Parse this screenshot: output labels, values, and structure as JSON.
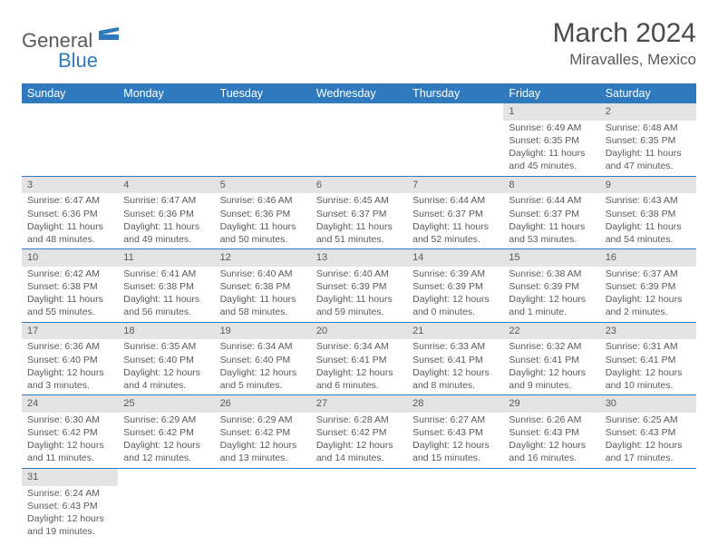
{
  "logo": {
    "text1": "General",
    "text2": "Blue",
    "icon_color": "#2f7abf"
  },
  "title": "March 2024",
  "location": "Miravalles, Mexico",
  "colors": {
    "header_bg": "#2f7abf",
    "header_fg": "#ffffff",
    "daynum_bg": "#e3e3e3",
    "rule": "#2f7abf",
    "text": "#5a5a5a"
  },
  "font": {
    "family": "Arial",
    "day_header_size": 12.5,
    "cell_size": 10.5,
    "title_size": 30,
    "location_size": 17
  },
  "day_headers": [
    "Sunday",
    "Monday",
    "Tuesday",
    "Wednesday",
    "Thursday",
    "Friday",
    "Saturday"
  ],
  "weeks": [
    [
      null,
      null,
      null,
      null,
      null,
      {
        "n": "1",
        "sr": "Sunrise: 6:49 AM",
        "ss": "Sunset: 6:35 PM",
        "dl1": "Daylight: 11 hours",
        "dl2": "and 45 minutes."
      },
      {
        "n": "2",
        "sr": "Sunrise: 6:48 AM",
        "ss": "Sunset: 6:35 PM",
        "dl1": "Daylight: 11 hours",
        "dl2": "and 47 minutes."
      }
    ],
    [
      {
        "n": "3",
        "sr": "Sunrise: 6:47 AM",
        "ss": "Sunset: 6:36 PM",
        "dl1": "Daylight: 11 hours",
        "dl2": "and 48 minutes."
      },
      {
        "n": "4",
        "sr": "Sunrise: 6:47 AM",
        "ss": "Sunset: 6:36 PM",
        "dl1": "Daylight: 11 hours",
        "dl2": "and 49 minutes."
      },
      {
        "n": "5",
        "sr": "Sunrise: 6:46 AM",
        "ss": "Sunset: 6:36 PM",
        "dl1": "Daylight: 11 hours",
        "dl2": "and 50 minutes."
      },
      {
        "n": "6",
        "sr": "Sunrise: 6:45 AM",
        "ss": "Sunset: 6:37 PM",
        "dl1": "Daylight: 11 hours",
        "dl2": "and 51 minutes."
      },
      {
        "n": "7",
        "sr": "Sunrise: 6:44 AM",
        "ss": "Sunset: 6:37 PM",
        "dl1": "Daylight: 11 hours",
        "dl2": "and 52 minutes."
      },
      {
        "n": "8",
        "sr": "Sunrise: 6:44 AM",
        "ss": "Sunset: 6:37 PM",
        "dl1": "Daylight: 11 hours",
        "dl2": "and 53 minutes."
      },
      {
        "n": "9",
        "sr": "Sunrise: 6:43 AM",
        "ss": "Sunset: 6:38 PM",
        "dl1": "Daylight: 11 hours",
        "dl2": "and 54 minutes."
      }
    ],
    [
      {
        "n": "10",
        "sr": "Sunrise: 6:42 AM",
        "ss": "Sunset: 6:38 PM",
        "dl1": "Daylight: 11 hours",
        "dl2": "and 55 minutes."
      },
      {
        "n": "11",
        "sr": "Sunrise: 6:41 AM",
        "ss": "Sunset: 6:38 PM",
        "dl1": "Daylight: 11 hours",
        "dl2": "and 56 minutes."
      },
      {
        "n": "12",
        "sr": "Sunrise: 6:40 AM",
        "ss": "Sunset: 6:38 PM",
        "dl1": "Daylight: 11 hours",
        "dl2": "and 58 minutes."
      },
      {
        "n": "13",
        "sr": "Sunrise: 6:40 AM",
        "ss": "Sunset: 6:39 PM",
        "dl1": "Daylight: 11 hours",
        "dl2": "and 59 minutes."
      },
      {
        "n": "14",
        "sr": "Sunrise: 6:39 AM",
        "ss": "Sunset: 6:39 PM",
        "dl1": "Daylight: 12 hours",
        "dl2": "and 0 minutes."
      },
      {
        "n": "15",
        "sr": "Sunrise: 6:38 AM",
        "ss": "Sunset: 6:39 PM",
        "dl1": "Daylight: 12 hours",
        "dl2": "and 1 minute."
      },
      {
        "n": "16",
        "sr": "Sunrise: 6:37 AM",
        "ss": "Sunset: 6:39 PM",
        "dl1": "Daylight: 12 hours",
        "dl2": "and 2 minutes."
      }
    ],
    [
      {
        "n": "17",
        "sr": "Sunrise: 6:36 AM",
        "ss": "Sunset: 6:40 PM",
        "dl1": "Daylight: 12 hours",
        "dl2": "and 3 minutes."
      },
      {
        "n": "18",
        "sr": "Sunrise: 6:35 AM",
        "ss": "Sunset: 6:40 PM",
        "dl1": "Daylight: 12 hours",
        "dl2": "and 4 minutes."
      },
      {
        "n": "19",
        "sr": "Sunrise: 6:34 AM",
        "ss": "Sunset: 6:40 PM",
        "dl1": "Daylight: 12 hours",
        "dl2": "and 5 minutes."
      },
      {
        "n": "20",
        "sr": "Sunrise: 6:34 AM",
        "ss": "Sunset: 6:41 PM",
        "dl1": "Daylight: 12 hours",
        "dl2": "and 6 minutes."
      },
      {
        "n": "21",
        "sr": "Sunrise: 6:33 AM",
        "ss": "Sunset: 6:41 PM",
        "dl1": "Daylight: 12 hours",
        "dl2": "and 8 minutes."
      },
      {
        "n": "22",
        "sr": "Sunrise: 6:32 AM",
        "ss": "Sunset: 6:41 PM",
        "dl1": "Daylight: 12 hours",
        "dl2": "and 9 minutes."
      },
      {
        "n": "23",
        "sr": "Sunrise: 6:31 AM",
        "ss": "Sunset: 6:41 PM",
        "dl1": "Daylight: 12 hours",
        "dl2": "and 10 minutes."
      }
    ],
    [
      {
        "n": "24",
        "sr": "Sunrise: 6:30 AM",
        "ss": "Sunset: 6:42 PM",
        "dl1": "Daylight: 12 hours",
        "dl2": "and 11 minutes."
      },
      {
        "n": "25",
        "sr": "Sunrise: 6:29 AM",
        "ss": "Sunset: 6:42 PM",
        "dl1": "Daylight: 12 hours",
        "dl2": "and 12 minutes."
      },
      {
        "n": "26",
        "sr": "Sunrise: 6:29 AM",
        "ss": "Sunset: 6:42 PM",
        "dl1": "Daylight: 12 hours",
        "dl2": "and 13 minutes."
      },
      {
        "n": "27",
        "sr": "Sunrise: 6:28 AM",
        "ss": "Sunset: 6:42 PM",
        "dl1": "Daylight: 12 hours",
        "dl2": "and 14 minutes."
      },
      {
        "n": "28",
        "sr": "Sunrise: 6:27 AM",
        "ss": "Sunset: 6:43 PM",
        "dl1": "Daylight: 12 hours",
        "dl2": "and 15 minutes."
      },
      {
        "n": "29",
        "sr": "Sunrise: 6:26 AM",
        "ss": "Sunset: 6:43 PM",
        "dl1": "Daylight: 12 hours",
        "dl2": "and 16 minutes."
      },
      {
        "n": "30",
        "sr": "Sunrise: 6:25 AM",
        "ss": "Sunset: 6:43 PM",
        "dl1": "Daylight: 12 hours",
        "dl2": "and 17 minutes."
      }
    ],
    [
      {
        "n": "31",
        "sr": "Sunrise: 6:24 AM",
        "ss": "Sunset: 6:43 PM",
        "dl1": "Daylight: 12 hours",
        "dl2": "and 19 minutes."
      },
      null,
      null,
      null,
      null,
      null,
      null
    ]
  ]
}
